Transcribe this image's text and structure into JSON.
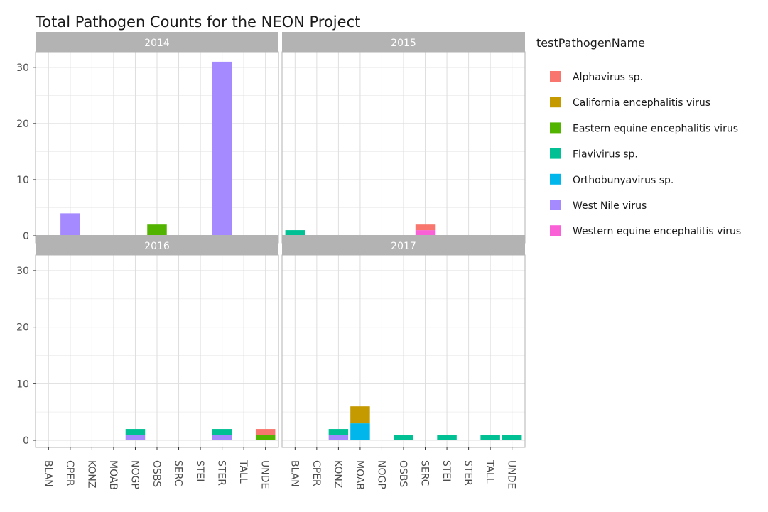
{
  "chart_data": {
    "type": "bar",
    "stacked": true,
    "faceted": true,
    "title": "Total Pathogen Counts for the NEON Project",
    "xlabel": "",
    "ylabel": "",
    "ylim": [
      0,
      32
    ],
    "y_ticks": [
      0,
      10,
      20,
      30
    ],
    "grid": true,
    "categories": [
      "BLAN",
      "CPER",
      "KONZ",
      "MOAB",
      "NOGP",
      "OSBS",
      "SERC",
      "STEI",
      "STER",
      "TALL",
      "UNDE"
    ],
    "legend": {
      "title": "testPathogenName",
      "position": "right",
      "entries": [
        {
          "name": "Alphavirus sp.",
          "color": "#F8766D"
        },
        {
          "name": "California encephalitis virus",
          "color": "#C49A00"
        },
        {
          "name": "Eastern equine encephalitis virus",
          "color": "#53B400"
        },
        {
          "name": "Flavivirus sp.",
          "color": "#00C094"
        },
        {
          "name": "Orthobunyavirus sp.",
          "color": "#00B6EB"
        },
        {
          "name": "West Nile virus",
          "color": "#A58AFF"
        },
        {
          "name": "Western equine encephalitis virus",
          "color": "#FB61D7"
        }
      ]
    },
    "facets": [
      {
        "label": "2014",
        "bars": [
          {
            "site": "CPER",
            "segments": [
              {
                "pathogen": "West Nile virus",
                "value": 4
              }
            ]
          },
          {
            "site": "OSBS",
            "segments": [
              {
                "pathogen": "Eastern equine encephalitis virus",
                "value": 2
              }
            ]
          },
          {
            "site": "STER",
            "segments": [
              {
                "pathogen": "West Nile virus",
                "value": 31
              }
            ]
          }
        ]
      },
      {
        "label": "2015",
        "bars": [
          {
            "site": "BLAN",
            "segments": [
              {
                "pathogen": "Flavivirus sp.",
                "value": 1
              }
            ]
          },
          {
            "site": "SERC",
            "segments": [
              {
                "pathogen": "Western equine encephalitis virus",
                "value": 1
              },
              {
                "pathogen": "Alphavirus sp.",
                "value": 1
              }
            ]
          }
        ]
      },
      {
        "label": "2016",
        "bars": [
          {
            "site": "NOGP",
            "segments": [
              {
                "pathogen": "West Nile virus",
                "value": 1
              },
              {
                "pathogen": "Flavivirus sp.",
                "value": 1
              }
            ]
          },
          {
            "site": "STER",
            "segments": [
              {
                "pathogen": "West Nile virus",
                "value": 1
              },
              {
                "pathogen": "Flavivirus sp.",
                "value": 1
              }
            ]
          },
          {
            "site": "UNDE",
            "segments": [
              {
                "pathogen": "Eastern equine encephalitis virus",
                "value": 1
              },
              {
                "pathogen": "Alphavirus sp.",
                "value": 1
              }
            ]
          }
        ]
      },
      {
        "label": "2017",
        "bars": [
          {
            "site": "KONZ",
            "segments": [
              {
                "pathogen": "West Nile virus",
                "value": 1
              },
              {
                "pathogen": "Flavivirus sp.",
                "value": 1
              }
            ]
          },
          {
            "site": "MOAB",
            "segments": [
              {
                "pathogen": "Orthobunyavirus sp.",
                "value": 3
              },
              {
                "pathogen": "California encephalitis virus",
                "value": 3
              }
            ]
          },
          {
            "site": "OSBS",
            "segments": [
              {
                "pathogen": "Flavivirus sp.",
                "value": 1
              }
            ]
          },
          {
            "site": "STEI",
            "segments": [
              {
                "pathogen": "Flavivirus sp.",
                "value": 1
              }
            ]
          },
          {
            "site": "TALL",
            "segments": [
              {
                "pathogen": "Flavivirus sp.",
                "value": 1
              }
            ]
          },
          {
            "site": "UNDE",
            "segments": [
              {
                "pathogen": "Flavivirus sp.",
                "value": 1
              }
            ]
          }
        ]
      }
    ]
  }
}
